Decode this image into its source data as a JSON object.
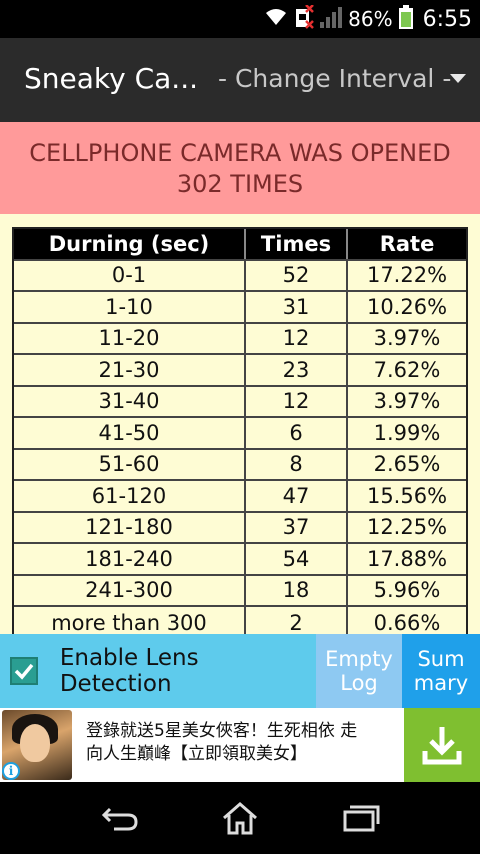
{
  "status_bar": {
    "battery_percent": "86%",
    "time": "6:55",
    "icons": [
      "wifi-icon",
      "sim-disabled-icon",
      "signal-icon",
      "battery-icon"
    ]
  },
  "action_bar": {
    "title": "Sneaky Ca...",
    "spinner_value": "- Change Interval -"
  },
  "banner": {
    "line1": "CELLPHONE CAMERA WAS OPENED",
    "line2": "302 TIMES"
  },
  "table": {
    "headers": [
      "Durning (sec)",
      "Times",
      "Rate"
    ],
    "rows": [
      [
        "0-1",
        "52",
        "17.22%"
      ],
      [
        "1-10",
        "31",
        "10.26%"
      ],
      [
        "11-20",
        "12",
        "3.97%"
      ],
      [
        "21-30",
        "23",
        "7.62%"
      ],
      [
        "31-40",
        "12",
        "3.97%"
      ],
      [
        "41-50",
        "6",
        "1.99%"
      ],
      [
        "51-60",
        "8",
        "2.65%"
      ],
      [
        "61-120",
        "47",
        "15.56%"
      ],
      [
        "121-180",
        "37",
        "12.25%"
      ],
      [
        "181-240",
        "54",
        "17.88%"
      ],
      [
        "241-300",
        "18",
        "5.96%"
      ],
      [
        "more than 300",
        "2",
        "0.66%"
      ]
    ]
  },
  "bottom_bar": {
    "lens_label": "Enable Lens Detection",
    "lens_checked": true,
    "empty_log_line1": "Empty",
    "empty_log_line2": "Log",
    "summary_line1": "Sum",
    "summary_line2": "mary"
  },
  "ad": {
    "line1": "登錄就送5星美女俠客！生死相依 走",
    "line2": "向人生巔峰【立即領取美女】",
    "info_glyph": "i"
  },
  "colors": {
    "banner_bg": "#ff9a9a",
    "content_bg": "#fefcd4",
    "lens_bg": "#5ecbec",
    "empty_log_bg": "#8ec9f2",
    "summary_bg": "#1fa0ea",
    "download_bg": "#7fbf30"
  }
}
